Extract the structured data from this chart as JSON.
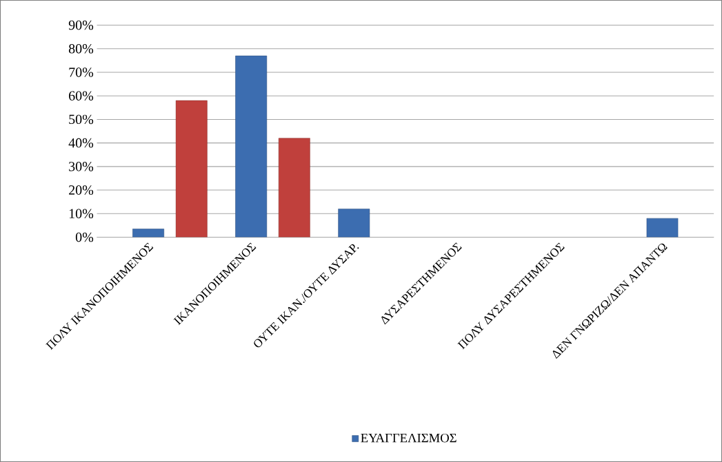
{
  "chart_data": {
    "type": "bar",
    "categories": [
      "ΠΟΛΥ ΙΚΑΝΟΠΟΙΗΜΕΝΟΣ",
      "ΙΚΑΝΟΠΟΙΗΜΕΝΟΣ",
      "ΟΥΤΕ ΙΚΑΝ./ΟΥΤΕ ΔΥΣΑΡ.",
      "ΔΥΣΑΡΕΣΤΗΜΕΝΟΣ",
      "ΠΟΛΥ ΔΥΣΑΡΕΣΤΗΜΕΝΟΣ",
      "ΔΕΝ ΓΝΩΡΙΖΩ/ΔΕΝ ΑΠΑΝΤΩ"
    ],
    "series": [
      {
        "name": "ΕΥΑΓΓΕΛΙΣΜΟΣ",
        "color": "#3c6db0",
        "values": [
          3.5,
          77,
          12,
          null,
          null,
          8
        ]
      },
      {
        "color": "#c0403c",
        "values": [
          58,
          42,
          null,
          null,
          null,
          null
        ]
      }
    ],
    "ylim": [
      0,
      90
    ],
    "yticks": [
      {
        "value": 0,
        "label": "0%"
      },
      {
        "value": 10,
        "label": "10%"
      },
      {
        "value": 20,
        "label": "20%"
      },
      {
        "value": 30,
        "label": "30%"
      },
      {
        "value": 40,
        "label": "40%"
      },
      {
        "value": 50,
        "label": "50%"
      },
      {
        "value": 60,
        "label": "60%"
      },
      {
        "value": 70,
        "label": "70%"
      },
      {
        "value": 80,
        "label": "80%"
      },
      {
        "value": 90,
        "label": "90%"
      }
    ],
    "grid": "y",
    "legend": "bottom"
  }
}
